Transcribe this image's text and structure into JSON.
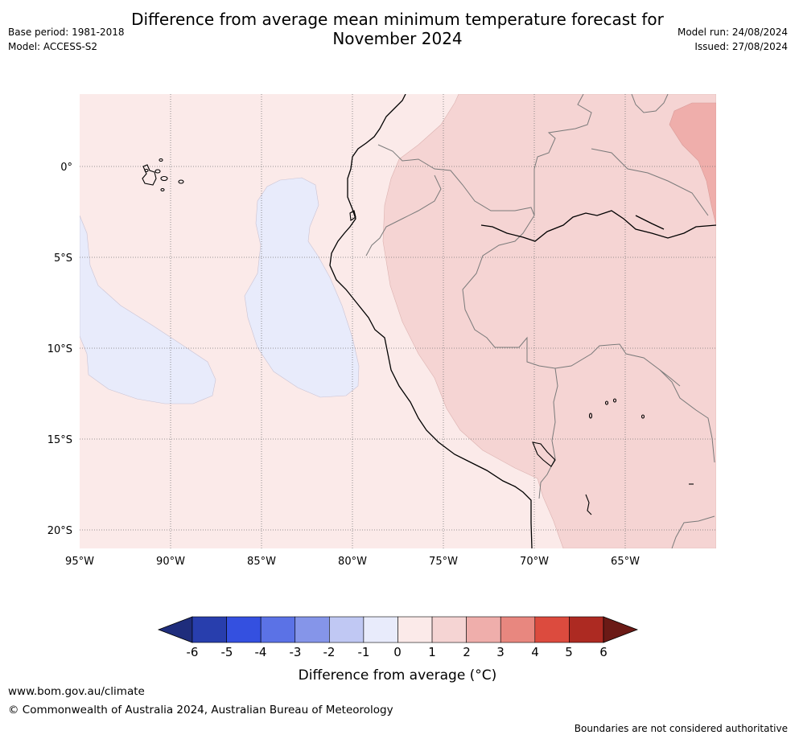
{
  "header": {
    "title_line1": "Difference from average mean minimum temperature forecast for",
    "title_line2": "November 2024",
    "base_period": "Base period: 1981-2018",
    "model": "Model: ACCESS-S2",
    "model_run": "Model run: 24/08/2024",
    "issued": "Issued: 27/08/2024"
  },
  "map": {
    "lat_labels": [
      "0°",
      "5°S",
      "10°S",
      "15°S",
      "20°S"
    ],
    "lon_labels": [
      "95°W",
      "90°W",
      "85°W",
      "80°W",
      "75°W",
      "70°W",
      "65°W"
    ]
  },
  "colorbar": {
    "ticks": [
      "-6",
      "-5",
      "-4",
      "-3",
      "-2",
      "-1",
      "0",
      "1",
      "2",
      "3",
      "4",
      "5",
      "6"
    ],
    "colors": [
      "#1f2d7c",
      "#283ead",
      "#3450e0",
      "#5b72e6",
      "#8595e9",
      "#c0c8f3",
      "#e8ebfb",
      "#fbeae9",
      "#f5d4d3",
      "#efaeab",
      "#e8877f",
      "#dc4b3e",
      "#ad2a22",
      "#6b1a16"
    ],
    "title": "Difference from average (°C)"
  },
  "footer": {
    "url": "www.bom.gov.au/climate",
    "copyright": "© Commonwealth of Australia 2024, Australian Bureau of Meteorology",
    "disclaimer": "Boundaries are not considered authoritative"
  }
}
